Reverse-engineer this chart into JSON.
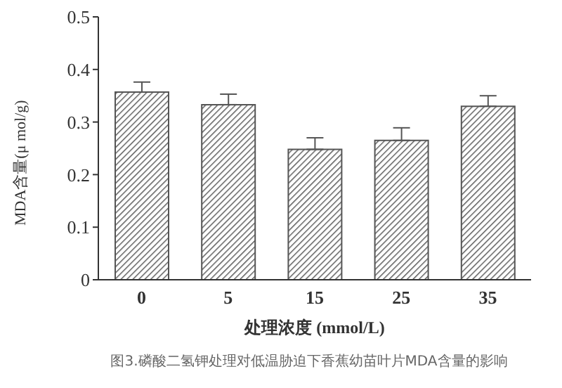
{
  "chart_data": {
    "type": "bar",
    "xlabel": "处理浓度 (mmol/L)",
    "ylabel": "MDA含量(μ mol/g)",
    "annotations": [
      "图3.磷酸二氢钾处理对低温胁迫下香蕉幼苗叶片MDA含量的影响"
    ],
    "categories": [
      "0",
      "5",
      "15",
      "25",
      "35"
    ],
    "values": [
      0.357,
      0.333,
      0.248,
      0.265,
      0.33
    ],
    "errors": [
      [
        0.357,
        0.376
      ],
      [
        0.333,
        0.353
      ],
      [
        0.248,
        0.27
      ],
      [
        0.265,
        0.289
      ],
      [
        0.33,
        0.35
      ]
    ],
    "color": "#555555",
    "ylim": [
      0,
      0.5
    ],
    "yticks": [
      0,
      0.1,
      0.2,
      0.3,
      0.4,
      0.5
    ],
    "grid": false,
    "legend": false
  }
}
